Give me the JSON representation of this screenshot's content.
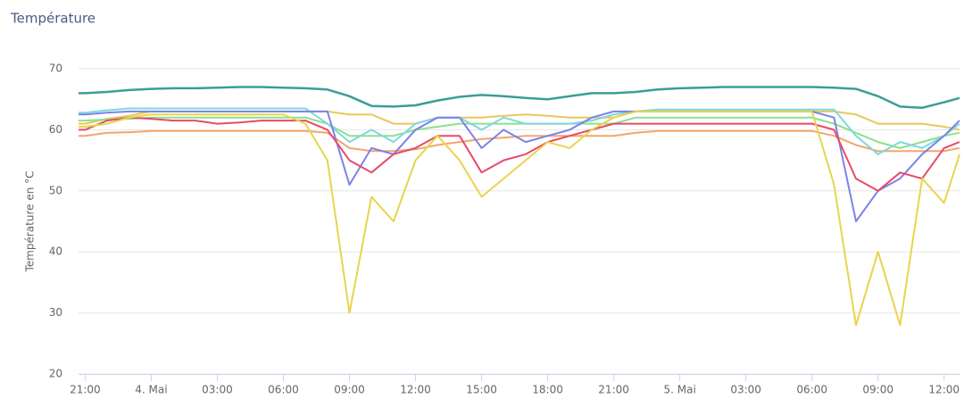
{
  "chart_data": {
    "type": "line",
    "title": "Température",
    "y_label": "Température en °C",
    "x": [
      -0.3,
      0,
      1,
      2,
      3,
      4,
      5,
      6,
      7,
      8,
      9,
      10,
      11,
      12,
      13,
      14,
      15,
      16,
      17,
      18,
      19,
      20,
      21,
      22,
      23,
      24,
      25,
      26,
      27,
      28,
      29,
      30,
      31,
      32,
      33,
      34,
      35,
      36,
      37,
      38,
      39,
      39.7
    ],
    "xlim": [
      -0.3,
      39.7
    ],
    "xticks": [
      {
        "value": 0,
        "label": "21:00"
      },
      {
        "value": 3,
        "label": "4. Mai"
      },
      {
        "value": 6,
        "label": "03:00"
      },
      {
        "value": 9,
        "label": "06:00"
      },
      {
        "value": 12,
        "label": "09:00"
      },
      {
        "value": 15,
        "label": "12:00"
      },
      {
        "value": 18,
        "label": "15:00"
      },
      {
        "value": 21,
        "label": "18:00"
      },
      {
        "value": 24,
        "label": "21:00"
      },
      {
        "value": 27,
        "label": "5. Mai"
      },
      {
        "value": 30,
        "label": "03:00"
      },
      {
        "value": 33,
        "label": "06:00"
      },
      {
        "value": 36,
        "label": "09:00"
      },
      {
        "value": 39,
        "label": "12:00"
      }
    ],
    "ylim": [
      20,
      70
    ],
    "yticks": [
      20,
      30,
      40,
      50,
      60,
      70
    ],
    "grid": true,
    "series": [
      {
        "color": "#f4a56a",
        "values": [
          59,
          59,
          59.5,
          59.6,
          59.8,
          59.8,
          59.8,
          59.8,
          59.8,
          59.8,
          59.8,
          59.8,
          59.5,
          57,
          56.5,
          56.5,
          56.8,
          57.5,
          58,
          58.5,
          58.7,
          59,
          59,
          59,
          59,
          59,
          59.5,
          59.8,
          59.8,
          59.8,
          59.8,
          59.8,
          59.8,
          59.8,
          59.8,
          59,
          57.5,
          56.5,
          56.5,
          56.5,
          56.5,
          57
        ]
      },
      {
        "color": "#e8c85a",
        "values": [
          61,
          61,
          61.8,
          62.3,
          63,
          63,
          63,
          63,
          63,
          63,
          63,
          63,
          63,
          62.5,
          62.5,
          61,
          61,
          62,
          62,
          62,
          62.3,
          62.5,
          62.3,
          62,
          62,
          62,
          63,
          63,
          63,
          63,
          63,
          63,
          63,
          63,
          63,
          63,
          62.5,
          61,
          61,
          61,
          60.5,
          60
        ]
      },
      {
        "color": "#8de08a",
        "values": [
          61.5,
          61.5,
          61.7,
          61.8,
          62,
          62,
          62,
          62,
          62,
          62,
          62,
          62,
          61,
          59,
          59,
          59,
          60,
          60.5,
          61,
          61,
          61,
          61,
          61,
          61,
          61,
          61,
          62,
          62,
          62,
          62,
          62,
          62,
          62,
          62,
          62,
          61,
          59.5,
          58,
          57,
          58,
          59,
          59.5
        ]
      },
      {
        "color": "#7fd8e0",
        "values": [
          62.8,
          62.8,
          63.2,
          63.5,
          63.5,
          63.5,
          63.5,
          63.5,
          63.5,
          63.5,
          63.5,
          63.5,
          61,
          58,
          60,
          58,
          61,
          62,
          62,
          60,
          62,
          61,
          61,
          61,
          61.5,
          62.5,
          63,
          63.3,
          63.3,
          63.3,
          63.3,
          63.3,
          63.3,
          63.3,
          63.3,
          63.3,
          59,
          56,
          58,
          57,
          59,
          61
        ]
      },
      {
        "color": "#7b83e8",
        "values": [
          62.5,
          62.5,
          62.8,
          63,
          63,
          63,
          63,
          63,
          63,
          63,
          63,
          63,
          63,
          51,
          57,
          56,
          60,
          62,
          62,
          57,
          60,
          58,
          59,
          60,
          62,
          63,
          63,
          63,
          63,
          63,
          63,
          63,
          63,
          63,
          63,
          62,
          45,
          50,
          52,
          56,
          59,
          61.5
        ]
      },
      {
        "color": "#e84a6a",
        "values": [
          60,
          60,
          61.5,
          62,
          61.8,
          61.5,
          61.5,
          61,
          61.2,
          61.5,
          61.5,
          61.5,
          60,
          55,
          53,
          56,
          57,
          59,
          59,
          53,
          55,
          56,
          58,
          59,
          60,
          61,
          61,
          61,
          61,
          61,
          61,
          61,
          61,
          61,
          61,
          60,
          52,
          50,
          53,
          52,
          57,
          58
        ]
      },
      {
        "color": "#e8d44d",
        "values": [
          60.5,
          60.5,
          61,
          62,
          62.5,
          62.5,
          62.5,
          62.5,
          62.5,
          62.5,
          62.5,
          61,
          55,
          30,
          49,
          45,
          55,
          59,
          55,
          49,
          52,
          55,
          58,
          57,
          60,
          62,
          63,
          63,
          63,
          63,
          63,
          63,
          63,
          63,
          63,
          51,
          28,
          40,
          28,
          52,
          48,
          56
        ]
      },
      {
        "color": "#3a9e96",
        "values": [
          66,
          66,
          66.2,
          66.5,
          66.7,
          66.8,
          66.8,
          66.9,
          67,
          67,
          66.9,
          66.8,
          66.6,
          65.5,
          63.9,
          63.8,
          64,
          64.8,
          65.4,
          65.7,
          65.5,
          65.2,
          65,
          65.5,
          66,
          66,
          66.2,
          66.6,
          66.8,
          66.9,
          67,
          67,
          67,
          67,
          67,
          66.9,
          66.7,
          65.5,
          63.8,
          63.6,
          64.5,
          65.2
        ]
      }
    ]
  }
}
